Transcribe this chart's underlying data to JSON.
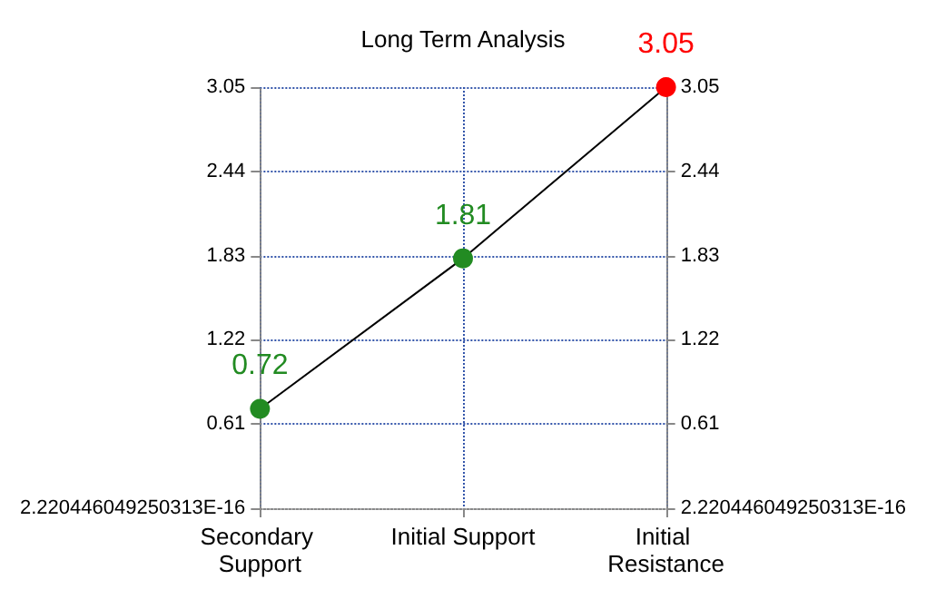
{
  "chart_data": {
    "type": "line",
    "title": "Long Term Analysis",
    "categories": [
      "Secondary Support",
      "Initial Support",
      "Initial Resistance"
    ],
    "series": [
      {
        "color": "#000000",
        "colors": [
          "#228b22",
          "#228b22",
          "#ff0000"
        ],
        "values": [
          0.72,
          1.81,
          3.05
        ]
      }
    ],
    "ylim": [
      0,
      3.05
    ],
    "yticks": [
      {
        "value": 2.220446049250313e-16,
        "label": "2.220446049250313E-16"
      },
      0.61,
      1.22,
      1.83,
      2.44,
      3.05
    ],
    "y2lim": [
      0,
      3.05
    ],
    "y2ticks": [
      {
        "value": 2.220446049250313e-16,
        "label": "2.220446049250313E-16"
      },
      0.61,
      1.22,
      1.83,
      2.44,
      3.05
    ],
    "grid": true,
    "marker": "circle",
    "line_style": "solid",
    "data_labels": true
  }
}
